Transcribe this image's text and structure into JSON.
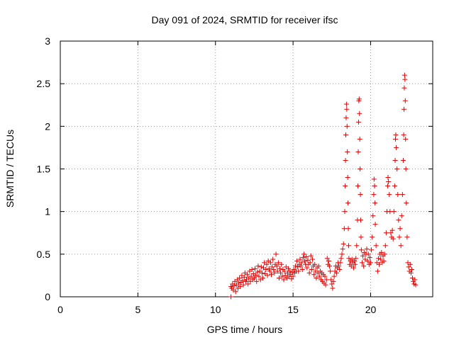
{
  "chart_data": {
    "type": "scatter",
    "title": "Day 091 of 2024, SRMTID for receiver ifsc",
    "xlabel": "GPS time / hours",
    "ylabel": "SRMTID / TECUs",
    "xlim": [
      0,
      24
    ],
    "ylim": [
      0,
      3
    ],
    "xticks": [
      0,
      5,
      10,
      15,
      20
    ],
    "yticks": [
      0,
      0.5,
      1,
      1.5,
      2,
      2.5,
      3
    ],
    "xtick_labels": [
      "0",
      "5",
      "10",
      "15",
      "20"
    ],
    "ytick_labels": [
      "0",
      "0.5",
      "1",
      "1.5",
      "2",
      "2.5",
      "3"
    ],
    "grid": true,
    "series": [
      {
        "name": "SRMTID",
        "color": "#e00000",
        "marker": "plus",
        "points": [
          [
            11.0,
            0.0
          ],
          [
            11.0,
            0.12
          ],
          [
            11.05,
            0.1
          ],
          [
            11.1,
            0.15
          ],
          [
            11.15,
            0.08
          ],
          [
            11.2,
            0.13
          ],
          [
            11.25,
            0.18
          ],
          [
            11.3,
            0.06
          ],
          [
            11.35,
            0.14
          ],
          [
            11.4,
            0.2
          ],
          [
            11.45,
            0.1
          ],
          [
            11.5,
            0.16
          ],
          [
            11.55,
            0.22
          ],
          [
            11.6,
            0.12
          ],
          [
            11.65,
            0.17
          ],
          [
            11.7,
            0.25
          ],
          [
            11.75,
            0.19
          ],
          [
            11.8,
            0.14
          ],
          [
            11.85,
            0.23
          ],
          [
            11.9,
            0.28
          ],
          [
            11.95,
            0.18
          ],
          [
            12.0,
            0.2
          ],
          [
            12.05,
            0.26
          ],
          [
            12.1,
            0.15
          ],
          [
            12.15,
            0.22
          ],
          [
            12.2,
            0.3
          ],
          [
            12.25,
            0.18
          ],
          [
            12.3,
            0.24
          ],
          [
            12.35,
            0.32
          ],
          [
            12.4,
            0.2
          ],
          [
            12.45,
            0.27
          ],
          [
            12.5,
            0.22
          ],
          [
            12.55,
            0.33
          ],
          [
            12.6,
            0.25
          ],
          [
            12.65,
            0.18
          ],
          [
            12.7,
            0.29
          ],
          [
            12.75,
            0.36
          ],
          [
            12.8,
            0.24
          ],
          [
            12.85,
            0.3
          ],
          [
            12.9,
            0.2
          ],
          [
            12.95,
            0.35
          ],
          [
            13.0,
            0.28
          ],
          [
            13.05,
            0.22
          ],
          [
            13.1,
            0.34
          ],
          [
            13.15,
            0.4
          ],
          [
            13.2,
            0.27
          ],
          [
            13.25,
            0.32
          ],
          [
            13.3,
            0.38
          ],
          [
            13.35,
            0.25
          ],
          [
            13.4,
            0.42
          ],
          [
            13.45,
            0.33
          ],
          [
            13.5,
            0.3
          ],
          [
            13.55,
            0.4
          ],
          [
            13.6,
            0.26
          ],
          [
            13.65,
            0.35
          ],
          [
            13.7,
            0.44
          ],
          [
            13.75,
            0.32
          ],
          [
            13.8,
            0.28
          ],
          [
            13.85,
            0.38
          ],
          [
            13.9,
            0.5
          ],
          [
            13.95,
            0.36
          ],
          [
            14.0,
            0.3
          ],
          [
            14.05,
            0.4
          ],
          [
            14.1,
            0.22
          ],
          [
            14.15,
            0.33
          ],
          [
            14.2,
            0.28
          ],
          [
            14.25,
            0.38
          ],
          [
            14.3,
            0.24
          ],
          [
            14.35,
            0.32
          ],
          [
            14.4,
            0.2
          ],
          [
            14.45,
            0.3
          ],
          [
            14.5,
            0.25
          ],
          [
            14.55,
            0.35
          ],
          [
            14.6,
            0.22
          ],
          [
            14.65,
            0.28
          ],
          [
            14.7,
            0.33
          ],
          [
            14.75,
            0.24
          ],
          [
            14.8,
            0.3
          ],
          [
            14.85,
            0.26
          ],
          [
            14.9,
            0.21
          ],
          [
            14.95,
            0.29
          ],
          [
            15.0,
            0.24
          ],
          [
            15.05,
            0.32
          ],
          [
            15.1,
            0.28
          ],
          [
            15.15,
            0.36
          ],
          [
            15.2,
            0.3
          ],
          [
            15.25,
            0.42
          ],
          [
            15.3,
            0.35
          ],
          [
            15.35,
            0.3
          ],
          [
            15.4,
            0.38
          ],
          [
            15.45,
            0.44
          ],
          [
            15.5,
            0.36
          ],
          [
            15.55,
            0.4
          ],
          [
            15.6,
            0.32
          ],
          [
            15.65,
            0.46
          ],
          [
            15.7,
            0.5
          ],
          [
            15.75,
            0.42
          ],
          [
            15.8,
            0.38
          ],
          [
            15.85,
            0.47
          ],
          [
            15.9,
            0.34
          ],
          [
            15.95,
            0.43
          ],
          [
            16.0,
            0.38
          ],
          [
            16.05,
            0.28
          ],
          [
            16.1,
            0.4
          ],
          [
            16.15,
            0.48
          ],
          [
            16.2,
            0.32
          ],
          [
            16.25,
            0.44
          ],
          [
            16.3,
            0.36
          ],
          [
            16.35,
            0.26
          ],
          [
            16.4,
            0.38
          ],
          [
            16.45,
            0.3
          ],
          [
            16.5,
            0.22
          ],
          [
            16.55,
            0.34
          ],
          [
            16.6,
            0.28
          ],
          [
            16.65,
            0.36
          ],
          [
            16.7,
            0.24
          ],
          [
            16.75,
            0.3
          ],
          [
            16.8,
            0.2
          ],
          [
            16.85,
            0.28
          ],
          [
            16.9,
            0.18
          ],
          [
            16.95,
            0.26
          ],
          [
            17.0,
            0.16
          ],
          [
            17.05,
            0.24
          ],
          [
            17.1,
            0.14
          ],
          [
            17.15,
            0.2
          ],
          [
            17.2,
            0.45
          ],
          [
            17.25,
            0.38
          ],
          [
            17.3,
            0.42
          ],
          [
            17.35,
            0.36
          ],
          [
            17.4,
            0.3
          ],
          [
            17.45,
            0.2
          ],
          [
            17.5,
            0.15
          ],
          [
            17.55,
            0.1
          ],
          [
            17.6,
            0.18
          ],
          [
            17.65,
            0.24
          ],
          [
            17.7,
            0.3
          ],
          [
            17.75,
            0.36
          ],
          [
            17.8,
            0.28
          ],
          [
            17.85,
            0.34
          ],
          [
            17.9,
            0.4
          ],
          [
            17.95,
            0.36
          ],
          [
            18.0,
            0.32
          ],
          [
            18.05,
            0.4
          ],
          [
            18.1,
            0.45
          ],
          [
            18.15,
            0.5
          ],
          [
            18.2,
            0.56
          ],
          [
            18.25,
            0.62
          ],
          [
            18.3,
            0.8
          ],
          [
            18.33,
            1.0
          ],
          [
            18.36,
            1.3
          ],
          [
            18.38,
            1.6
          ],
          [
            18.4,
            1.9
          ],
          [
            18.42,
            2.1
          ],
          [
            18.44,
            2.26
          ],
          [
            18.46,
            2.2
          ],
          [
            18.48,
            2.0
          ],
          [
            18.5,
            1.7
          ],
          [
            18.52,
            1.4
          ],
          [
            18.54,
            1.1
          ],
          [
            18.56,
            0.8
          ],
          [
            18.58,
            0.6
          ],
          [
            18.6,
            0.45
          ],
          [
            18.65,
            0.38
          ],
          [
            18.7,
            0.42
          ],
          [
            18.75,
            0.36
          ],
          [
            18.8,
            0.44
          ],
          [
            18.85,
            0.4
          ],
          [
            18.9,
            0.34
          ],
          [
            18.95,
            0.42
          ],
          [
            19.0,
            0.38
          ],
          [
            19.05,
            0.45
          ],
          [
            19.1,
            0.6
          ],
          [
            19.15,
            0.9
          ],
          [
            19.18,
            1.3
          ],
          [
            19.2,
            1.7
          ],
          [
            19.22,
            2.05
          ],
          [
            19.24,
            2.3
          ],
          [
            19.26,
            2.32
          ],
          [
            19.28,
            2.15
          ],
          [
            19.3,
            1.85
          ],
          [
            19.32,
            1.5
          ],
          [
            19.34,
            1.2
          ],
          [
            19.36,
            0.9
          ],
          [
            19.38,
            0.7
          ],
          [
            19.4,
            0.55
          ],
          [
            19.45,
            0.4
          ],
          [
            19.5,
            0.48
          ],
          [
            19.55,
            0.36
          ],
          [
            19.6,
            0.52
          ],
          [
            19.65,
            0.44
          ],
          [
            19.7,
            0.5
          ],
          [
            19.75,
            0.56
          ],
          [
            19.8,
            0.42
          ],
          [
            19.85,
            0.5
          ],
          [
            19.9,
            0.38
          ],
          [
            19.95,
            0.46
          ],
          [
            20.0,
            0.4
          ],
          [
            20.05,
            0.55
          ],
          [
            20.1,
            0.7
          ],
          [
            20.15,
            0.95
          ],
          [
            20.2,
            1.2
          ],
          [
            20.22,
            1.38
          ],
          [
            20.25,
            1.3
          ],
          [
            20.28,
            1.1
          ],
          [
            20.3,
            0.85
          ],
          [
            20.35,
            0.6
          ],
          [
            20.4,
            0.4
          ],
          [
            20.45,
            0.3
          ],
          [
            20.5,
            0.45
          ],
          [
            20.55,
            0.38
          ],
          [
            20.6,
            0.5
          ],
          [
            20.65,
            0.44
          ],
          [
            20.7,
            0.52
          ],
          [
            20.75,
            0.4
          ],
          [
            20.8,
            0.48
          ],
          [
            20.85,
            0.42
          ],
          [
            20.9,
            0.5
          ],
          [
            20.95,
            0.6
          ],
          [
            21.0,
            0.75
          ],
          [
            21.05,
            1.0
          ],
          [
            21.1,
            1.3
          ],
          [
            21.12,
            1.4
          ],
          [
            21.15,
            1.35
          ],
          [
            21.2,
            1.2
          ],
          [
            21.25,
            1.0
          ],
          [
            21.3,
            0.75
          ],
          [
            21.35,
            0.7
          ],
          [
            21.4,
            0.78
          ],
          [
            21.45,
            0.68
          ],
          [
            21.5,
            1.0
          ],
          [
            21.55,
            1.3
          ],
          [
            21.58,
            1.6
          ],
          [
            21.6,
            1.85
          ],
          [
            21.62,
            1.9
          ],
          [
            21.65,
            1.75
          ],
          [
            21.7,
            1.5
          ],
          [
            21.75,
            1.2
          ],
          [
            21.8,
            0.9
          ],
          [
            21.85,
            0.7
          ],
          [
            21.9,
            0.8
          ],
          [
            21.95,
            0.6
          ],
          [
            22.0,
            0.95
          ],
          [
            22.05,
            1.2
          ],
          [
            22.1,
            1.6
          ],
          [
            22.13,
            1.9
          ],
          [
            22.15,
            2.2
          ],
          [
            22.17,
            2.45
          ],
          [
            22.19,
            2.6
          ],
          [
            22.21,
            2.55
          ],
          [
            22.23,
            2.3
          ],
          [
            22.25,
            1.85
          ],
          [
            22.27,
            1.5
          ],
          [
            22.3,
            1.1
          ],
          [
            22.35,
            0.7
          ],
          [
            22.4,
            0.4
          ],
          [
            22.45,
            0.35
          ],
          [
            22.5,
            0.3
          ],
          [
            22.55,
            0.38
          ],
          [
            22.6,
            0.28
          ],
          [
            22.65,
            0.32
          ],
          [
            22.7,
            0.22
          ],
          [
            22.75,
            0.18
          ],
          [
            22.8,
            0.15
          ],
          [
            22.85,
            0.2
          ],
          [
            22.9,
            0.14
          ]
        ]
      }
    ]
  }
}
